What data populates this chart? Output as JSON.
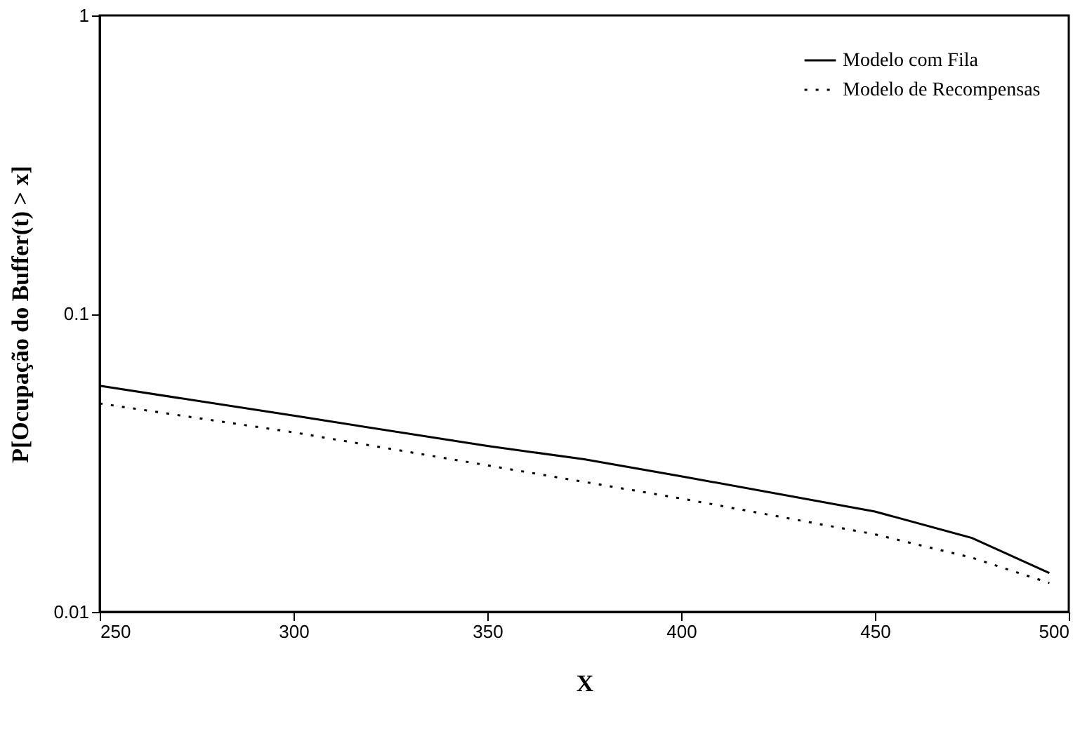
{
  "chart_data": {
    "type": "line",
    "xlabel": "X",
    "ylabel": "P[Ocupação do Buffer(t) > x]",
    "log": "y",
    "xlim": [
      250,
      500
    ],
    "xticks": [
      250,
      300,
      350,
      400,
      450,
      500
    ],
    "ylim": [
      0.01,
      1
    ],
    "yticks": [
      0.01,
      0.1,
      1
    ],
    "grid": false,
    "legend": "top right",
    "marker": "none",
    "series": [
      {
        "name": "Modelo com Fila",
        "color": "#000000",
        "line_style": "solid",
        "x": [
          250,
          300,
          350,
          375,
          400,
          450,
          475,
          495
        ],
        "values": [
          0.0573,
          0.0455,
          0.036,
          0.0325,
          0.0285,
          0.0217,
          0.0177,
          0.0135
        ]
      },
      {
        "name": "Modelo de Recompensas",
        "color": "#000000",
        "line_style": "dotted",
        "x": [
          250,
          300,
          350,
          400,
          450,
          475,
          495
        ],
        "values": [
          0.05,
          0.04,
          0.031,
          0.024,
          0.0182,
          0.0152,
          0.0125
        ]
      }
    ]
  }
}
